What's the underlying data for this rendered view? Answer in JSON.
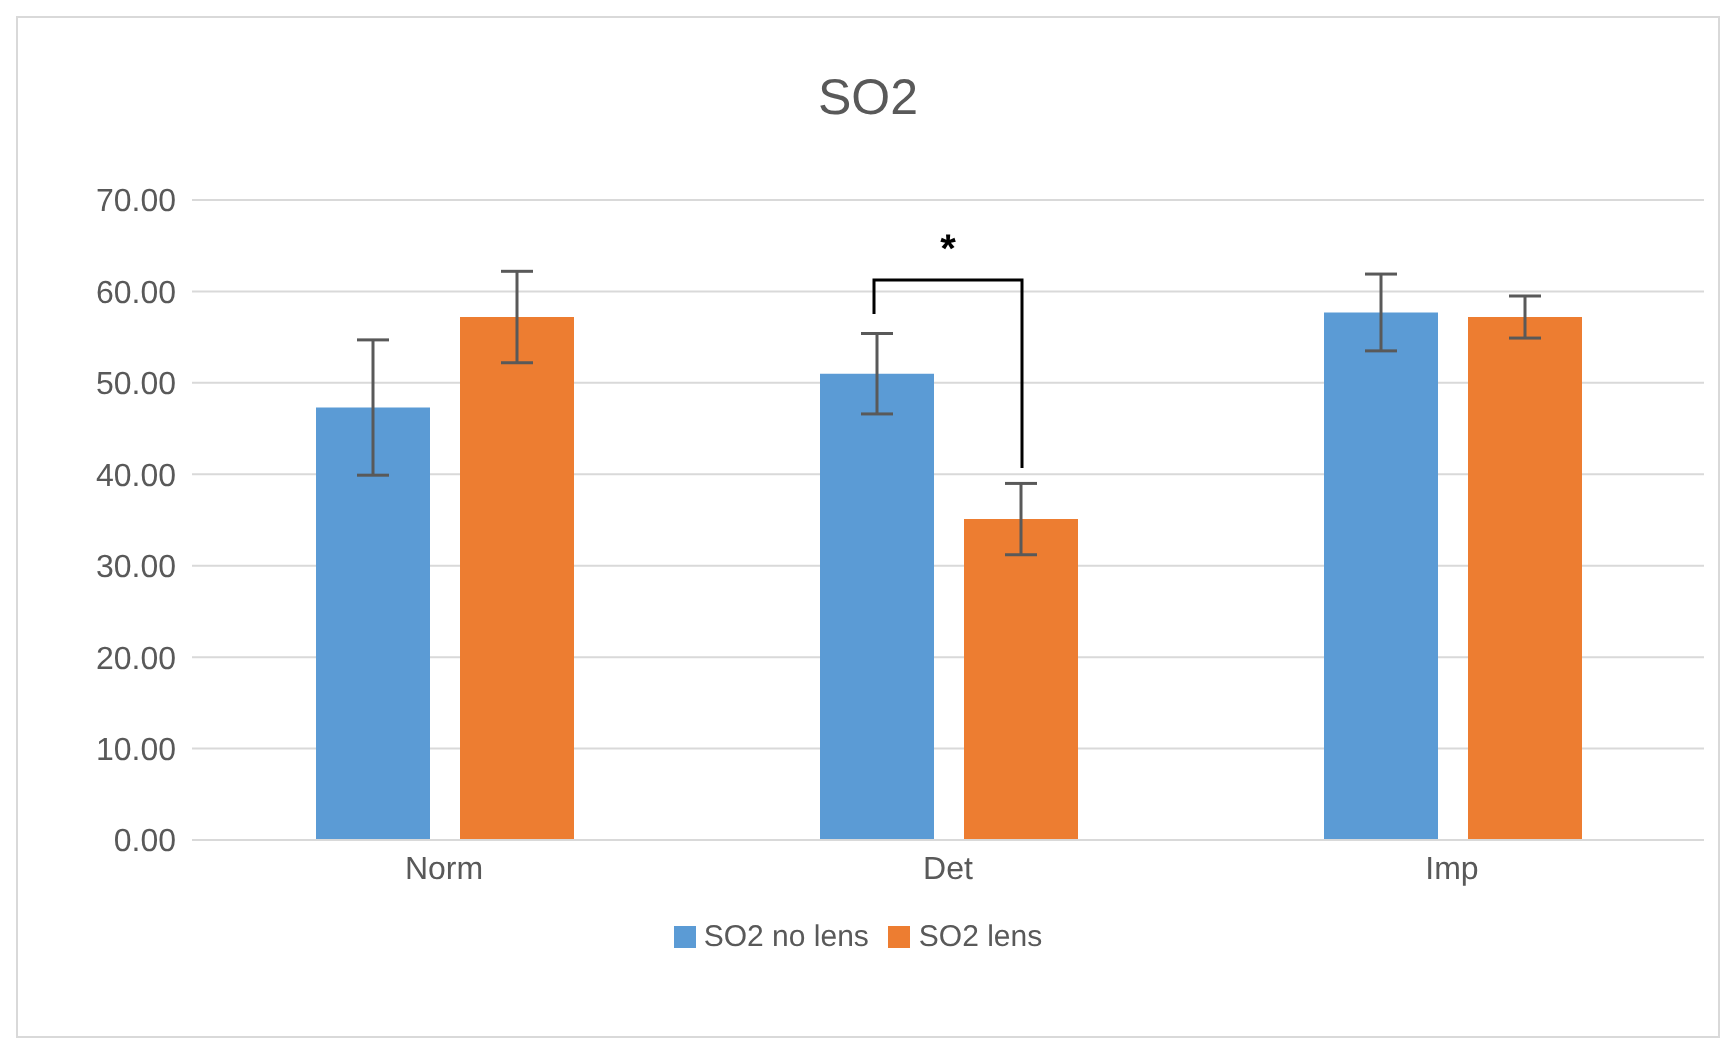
{
  "chart_data": {
    "type": "bar",
    "title": "SO2",
    "categories": [
      "Norm",
      "Det",
      "Imp"
    ],
    "series": [
      {
        "name": "SO2 no lens",
        "color": "#5b9bd5",
        "values": [
          47.3,
          51.0,
          57.7
        ],
        "errors": [
          7.4,
          4.4,
          4.2
        ]
      },
      {
        "name": "SO2 lens",
        "color": "#ed7d31",
        "values": [
          57.2,
          35.1,
          57.2
        ],
        "errors": [
          5.0,
          3.9,
          2.3
        ]
      }
    ],
    "ylim": [
      0,
      70
    ],
    "yticks": [
      {
        "value": 0,
        "label": "0.00"
      },
      {
        "value": 10,
        "label": "10.00"
      },
      {
        "value": 20,
        "label": "20.00"
      },
      {
        "value": 30,
        "label": "30.00"
      },
      {
        "value": 40,
        "label": "40.00"
      },
      {
        "value": 50,
        "label": "50.00"
      },
      {
        "value": 60,
        "label": "60.00"
      },
      {
        "value": 70,
        "label": "70.00"
      }
    ],
    "grid": "y",
    "legend": "bottom",
    "annotations": [
      "*"
    ]
  }
}
